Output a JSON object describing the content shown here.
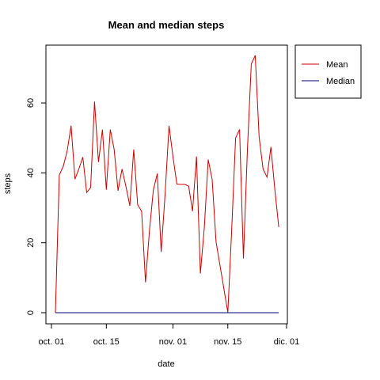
{
  "chart_data": {
    "type": "line",
    "title": "Mean and median steps",
    "xlabel": "date",
    "ylabel": "steps",
    "x_ticks": [
      "oct. 01",
      "oct. 15",
      "nov. 01",
      "nov. 15",
      "dic. 01"
    ],
    "x_tick_days": [
      1,
      15,
      32,
      46,
      61
    ],
    "y_ticks": [
      0,
      20,
      40,
      60
    ],
    "xlim": [
      1,
      61
    ],
    "ylim": [
      0,
      73.6
    ],
    "grid": false,
    "legend_position": "top-right",
    "series": [
      {
        "name": "Mean",
        "color": "#cc0000",
        "values": [
          0,
          39.4,
          41.8,
          46.2,
          53.5,
          38.2,
          41.2,
          44.5,
          34.4,
          35.8,
          60.4,
          43.1,
          52.4,
          35.2,
          52.4,
          46.7,
          34.9,
          41.1,
          36.1,
          30.6,
          46.7,
          30.9,
          29.0,
          8.7,
          23.5,
          35.1,
          39.8,
          17.4,
          34.1,
          53.5,
          44.6,
          36.8,
          36.7,
          36.7,
          36.2,
          29.0,
          44.7,
          11.2,
          24.4,
          43.8,
          38.1,
          20.3,
          0.1,
          23.9,
          50.0,
          52.4,
          15.5,
          46.5,
          71.1,
          73.6,
          50.3,
          41.1,
          38.8,
          47.4,
          35.4,
          24.5
        ]
      },
      {
        "name": "Median",
        "color": "#00007a",
        "values": [
          0,
          0,
          0,
          0,
          0,
          0,
          0,
          0,
          0,
          0,
          0,
          0,
          0,
          0,
          0,
          0,
          0,
          0,
          0,
          0,
          0,
          0,
          0,
          0,
          0,
          0,
          0,
          0,
          0,
          0,
          0,
          0,
          0,
          0,
          0,
          0,
          0,
          0,
          0,
          0,
          0,
          0,
          0,
          0,
          0,
          0,
          0,
          0,
          0,
          0,
          0,
          0,
          0,
          0,
          0,
          0
        ]
      }
    ],
    "x_days": [
      2,
      3,
      4,
      5,
      6,
      7,
      8,
      9,
      10,
      11,
      12,
      13,
      14,
      15,
      16,
      17,
      18,
      19,
      20,
      21,
      22,
      23,
      24,
      25,
      26,
      27,
      28,
      29,
      30,
      31,
      32,
      33,
      34,
      35,
      36,
      37,
      38,
      39,
      40,
      41,
      42,
      43,
      46,
      47,
      48,
      49,
      50,
      51,
      52,
      53,
      54,
      55,
      56,
      57,
      58,
      59
    ]
  }
}
